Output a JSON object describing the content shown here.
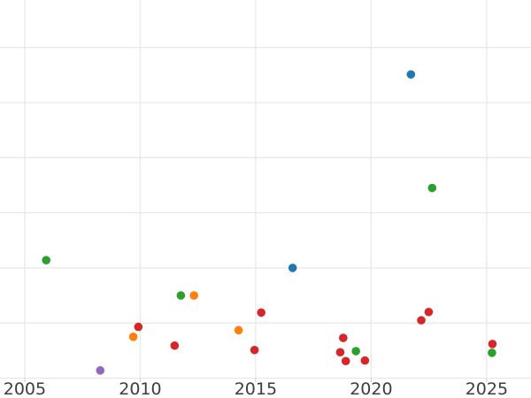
{
  "chart_data": {
    "type": "scatter",
    "title": "",
    "xlabel": "",
    "ylabel": "",
    "grid": true,
    "legend": "none",
    "background_color": "#ffffff",
    "gridline_color": "#e7e7e7",
    "tick_color": "#c9c9c9",
    "tick_label_color": "#3d3d3d",
    "x_ticks": [
      2005,
      2010,
      2015,
      2020,
      2025
    ],
    "x_tick_labels": [
      "2005",
      "2010",
      "2015",
      "2020",
      "2025"
    ],
    "x_range": [
      2003.93,
      2026.92
    ],
    "y_range": [
      -0.36,
      6.86
    ],
    "y_gridlines": [
      0,
      1,
      2,
      3,
      4,
      5,
      6
    ],
    "y_tick_labels_visible": false,
    "marker": {
      "shape": "circle",
      "radius_px": 4.8
    },
    "series": [
      {
        "name": "series-blue",
        "color": "#1f77b4",
        "points": [
          {
            "x": 2021.72,
            "y": 5.51
          },
          {
            "x": 2016.6,
            "y": 2.0
          }
        ]
      },
      {
        "name": "series-orange",
        "color": "#ff7f0e",
        "points": [
          {
            "x": 2009.7,
            "y": 0.75
          },
          {
            "x": 2012.33,
            "y": 1.5
          },
          {
            "x": 2014.26,
            "y": 0.87
          }
        ]
      },
      {
        "name": "series-green",
        "color": "#2ca02c",
        "points": [
          {
            "x": 2005.93,
            "y": 2.14
          },
          {
            "x": 2011.76,
            "y": 1.5
          },
          {
            "x": 2019.34,
            "y": 0.49
          },
          {
            "x": 2022.64,
            "y": 3.45
          },
          {
            "x": 2025.23,
            "y": 0.46
          }
        ]
      },
      {
        "name": "series-red",
        "color": "#d62728",
        "points": [
          {
            "x": 2009.92,
            "y": 0.93
          },
          {
            "x": 2011.49,
            "y": 0.59
          },
          {
            "x": 2014.95,
            "y": 0.51
          },
          {
            "x": 2015.24,
            "y": 1.19
          },
          {
            "x": 2018.66,
            "y": 0.47
          },
          {
            "x": 2018.79,
            "y": 0.73
          },
          {
            "x": 2018.9,
            "y": 0.31
          },
          {
            "x": 2019.73,
            "y": 0.32
          },
          {
            "x": 2022.17,
            "y": 1.05
          },
          {
            "x": 2022.49,
            "y": 1.2
          },
          {
            "x": 2025.25,
            "y": 0.62
          }
        ]
      },
      {
        "name": "series-purple",
        "color": "#9467bd",
        "points": [
          {
            "x": 2008.27,
            "y": 0.14
          }
        ]
      }
    ]
  }
}
